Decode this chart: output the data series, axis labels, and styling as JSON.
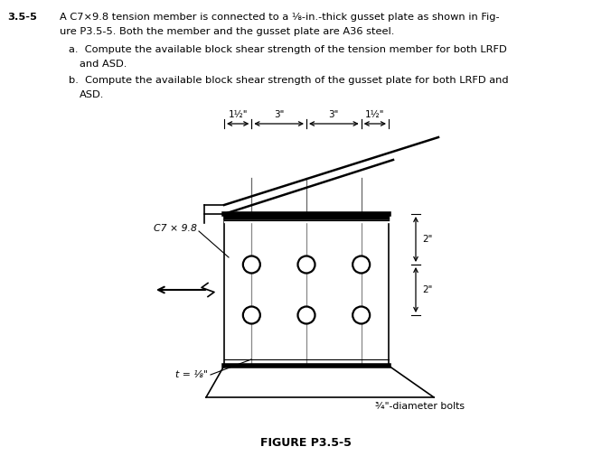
{
  "bg_color": "#ffffff",
  "text_color": "#000000",
  "problem_number": "3.5-5",
  "problem_text_line1": "A C7×9.8 tension member is connected to a ⅛-in.-thick gusset plate as shown in Fig-",
  "problem_text_line2": "ure P3.5-5. Both the member and the gusset plate are A36 steel.",
  "part_a": "a.  Compute the available block shear strength of the tension member for both LRFD",
  "part_a2": "and ASD.",
  "part_b": "b.  Compute the available block shear strength of the gusset plate for both LRFD and",
  "part_b2": "ASD.",
  "figure_label": "FIGURE P3.5-5",
  "c_label": "C7 × 9.8",
  "t_label": "t = ⅛\"",
  "bolt_label": "¾\"-diameter bolts",
  "dim_1half_L": "1½\"",
  "dim_3a": "3\"",
  "dim_3b": "3\"",
  "dim_1half_R": "1½\"",
  "dim_2top": "2\"",
  "dim_2bot": "2\""
}
